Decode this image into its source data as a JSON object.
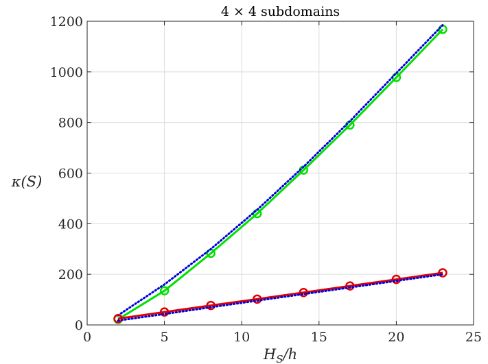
{
  "chart_data": {
    "type": "line",
    "title": "4 × 4 subdomains",
    "xlabel": "H_S/h",
    "ylabel": "κ(S)",
    "xlim": [
      0,
      25
    ],
    "ylim": [
      0,
      1200
    ],
    "xticks": [
      0,
      5,
      10,
      15,
      20,
      25
    ],
    "yticks": [
      0,
      200,
      400,
      600,
      800,
      1000,
      1200
    ],
    "grid": true,
    "legend": "none",
    "series": [
      {
        "color": "#00e000",
        "line_style": "solid",
        "marker": "circle",
        "x": [
          2,
          5,
          8,
          11,
          14,
          17,
          20,
          23
        ],
        "y": [
          22,
          135,
          283,
          440,
          612,
          790,
          978,
          1168
        ]
      },
      {
        "color": "#0000dd",
        "line_style": "dotted",
        "marker": "none",
        "x": [
          2,
          5,
          8,
          11,
          14,
          17,
          20,
          23
        ],
        "y": [
          38,
          160,
          300,
          455,
          625,
          805,
          995,
          1185
        ]
      },
      {
        "color": "#e00000",
        "line_style": "solid",
        "marker": "circle",
        "x": [
          2,
          5,
          8,
          11,
          14,
          17,
          20,
          23
        ],
        "y": [
          25,
          51,
          77,
          102,
          128,
          154,
          180,
          206
        ]
      },
      {
        "color": "#0000dd",
        "line_style": "dotted",
        "marker": "none",
        "x": [
          2,
          5,
          8,
          11,
          14,
          17,
          20,
          23
        ],
        "y": [
          17,
          43,
          70,
          96,
          122,
          148,
          174,
          200
        ]
      }
    ]
  }
}
